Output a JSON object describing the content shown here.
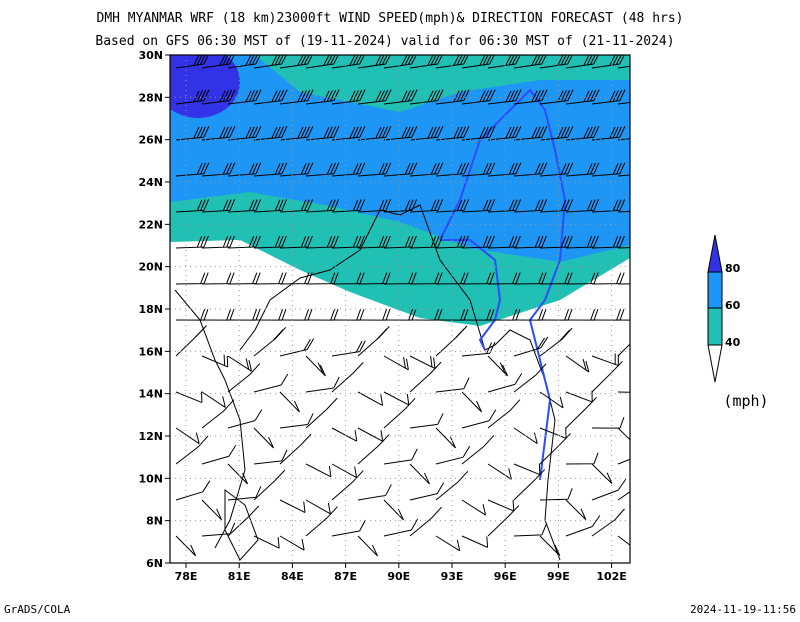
{
  "header": {
    "title": "DMH MYANMAR WRF (18 km)23000ft WIND SPEED(mph)& DIRECTION FORECAST (48 hrs)",
    "subtitle": "Based on GFS 06:30 MST of (19-11-2024) valid for 06:30 MST of (21-11-2024)"
  },
  "map": {
    "lat_labels": [
      "30N",
      "28N",
      "26N",
      "24N",
      "22N",
      "20N",
      "18N",
      "16N",
      "14N",
      "12N",
      "10N",
      "8N",
      "6N"
    ],
    "lon_labels": [
      "78E",
      "81E",
      "84E",
      "87E",
      "90E",
      "93E",
      "96E",
      "99E",
      "102E"
    ]
  },
  "legend": {
    "labels": [
      80,
      60,
      40
    ],
    "unit": "(mph)"
  },
  "footer": {
    "left": "GrADS/COLA",
    "right": "2024-11-19-11:56"
  }
}
